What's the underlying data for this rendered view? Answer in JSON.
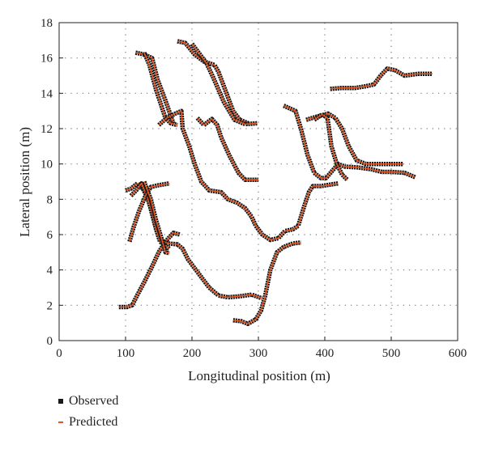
{
  "chart_data": {
    "type": "line",
    "title": "",
    "xlabel": "Longitudinal position (m)",
    "ylabel": "Lateral position (m)",
    "xlim": [
      0,
      600
    ],
    "ylim": [
      0,
      18
    ],
    "xticks": [
      0,
      100,
      200,
      300,
      400,
      500,
      600
    ],
    "yticks": [
      0,
      2,
      4,
      6,
      8,
      10,
      12,
      14,
      16,
      18
    ],
    "grid": "dotted",
    "legend_position": "bottom-left",
    "colors": {
      "observed": "#1a1a1a",
      "predicted": "#e8541e"
    },
    "legend": [
      {
        "key": "observed",
        "label": "Observed",
        "marker": "square"
      },
      {
        "key": "predicted",
        "label": "Predicted",
        "marker": "dash"
      }
    ],
    "trajectories": [
      [
        [
          115,
          16.3
        ],
        [
          128,
          16.2
        ],
        [
          140,
          16.0
        ],
        [
          148,
          14.8
        ],
        [
          160,
          13.6
        ],
        [
          172,
          12.3
        ]
      ],
      [
        [
          128,
          16.3
        ],
        [
          136,
          15.6
        ],
        [
          146,
          14.2
        ],
        [
          160,
          12.6
        ],
        [
          168,
          12.3
        ],
        [
          178,
          12.2
        ]
      ],
      [
        [
          178,
          16.95
        ],
        [
          190,
          16.85
        ],
        [
          204,
          16.2
        ],
        [
          218,
          15.8
        ],
        [
          234,
          15.6
        ],
        [
          240,
          15.2
        ],
        [
          252,
          14.0
        ],
        [
          262,
          13.0
        ],
        [
          272,
          12.5
        ],
        [
          285,
          12.3
        ]
      ],
      [
        [
          200,
          16.8
        ],
        [
          210,
          16.3
        ],
        [
          222,
          15.7
        ],
        [
          232,
          14.9
        ],
        [
          248,
          13.5
        ],
        [
          264,
          12.5
        ],
        [
          280,
          12.25
        ],
        [
          298,
          12.3
        ]
      ],
      [
        [
          150,
          12.2
        ],
        [
          162,
          12.6
        ],
        [
          175,
          12.85
        ],
        [
          184,
          13.0
        ],
        [
          186,
          12.0
        ],
        [
          196,
          11.0
        ],
        [
          204,
          10.0
        ],
        [
          214,
          9.0
        ],
        [
          226,
          8.5
        ],
        [
          244,
          8.4
        ],
        [
          254,
          8.0
        ],
        [
          268,
          7.8
        ],
        [
          280,
          7.5
        ],
        [
          290,
          7.0
        ],
        [
          296,
          6.5
        ],
        [
          306,
          6.0
        ],
        [
          318,
          5.7
        ],
        [
          330,
          5.8
        ],
        [
          340,
          6.2
        ],
        [
          352,
          6.3
        ],
        [
          360,
          6.5
        ],
        [
          368,
          7.5
        ],
        [
          376,
          8.4
        ],
        [
          382,
          8.75
        ],
        [
          394,
          8.75
        ],
        [
          420,
          8.9
        ]
      ],
      [
        [
          208,
          12.6
        ],
        [
          218,
          12.2
        ],
        [
          230,
          12.55
        ],
        [
          238,
          12.2
        ],
        [
          244,
          11.5
        ],
        [
          256,
          10.5
        ],
        [
          270,
          9.5
        ],
        [
          280,
          9.1
        ],
        [
          300,
          9.1
        ]
      ],
      [
        [
          338,
          13.3
        ],
        [
          350,
          13.1
        ],
        [
          356,
          13.0
        ],
        [
          364,
          12.0
        ],
        [
          374,
          10.5
        ],
        [
          384,
          9.5
        ],
        [
          394,
          9.2
        ],
        [
          402,
          9.2
        ],
        [
          420,
          10.0
        ],
        [
          430,
          9.85
        ],
        [
          450,
          9.8
        ],
        [
          470,
          9.7
        ],
        [
          486,
          9.55
        ],
        [
          500,
          9.55
        ],
        [
          520,
          9.5
        ],
        [
          536,
          9.25
        ]
      ],
      [
        [
          372,
          12.5
        ],
        [
          390,
          12.7
        ],
        [
          405,
          12.85
        ],
        [
          416,
          12.6
        ],
        [
          426,
          12.0
        ],
        [
          436,
          11.0
        ],
        [
          448,
          10.2
        ],
        [
          462,
          10.0
        ],
        [
          490,
          10.0
        ],
        [
          518,
          10.0
        ]
      ],
      [
        [
          384,
          12.5
        ],
        [
          396,
          12.8
        ],
        [
          404,
          12.6
        ],
        [
          410,
          11.0
        ],
        [
          418,
          10.0
        ],
        [
          426,
          9.4
        ],
        [
          434,
          9.1
        ]
      ],
      [
        [
          408,
          14.25
        ],
        [
          425,
          14.3
        ],
        [
          445,
          14.3
        ],
        [
          462,
          14.4
        ],
        [
          474,
          14.5
        ],
        [
          484,
          15.0
        ],
        [
          494,
          15.4
        ],
        [
          506,
          15.3
        ],
        [
          520,
          15.0
        ],
        [
          540,
          15.1
        ],
        [
          562,
          15.1
        ]
      ],
      [
        [
          90,
          1.9
        ],
        [
          102,
          1.9
        ],
        [
          110,
          2.0
        ],
        [
          118,
          2.6
        ],
        [
          128,
          3.3
        ],
        [
          140,
          4.2
        ],
        [
          150,
          5.0
        ],
        [
          160,
          5.6
        ],
        [
          172,
          6.1
        ],
        [
          182,
          6.0
        ]
      ],
      [
        [
          100,
          8.5
        ],
        [
          108,
          8.6
        ],
        [
          118,
          8.9
        ],
        [
          126,
          8.6
        ],
        [
          134,
          8.0
        ],
        [
          144,
          6.6
        ],
        [
          152,
          5.7
        ],
        [
          164,
          5.5
        ],
        [
          178,
          5.45
        ],
        [
          186,
          5.2
        ],
        [
          194,
          4.6
        ],
        [
          206,
          4.0
        ],
        [
          216,
          3.5
        ],
        [
          226,
          3.0
        ],
        [
          240,
          2.55
        ],
        [
          254,
          2.45
        ],
        [
          270,
          2.5
        ],
        [
          290,
          2.6
        ],
        [
          305,
          2.4
        ]
      ],
      [
        [
          108,
          8.2
        ],
        [
          116,
          8.5
        ],
        [
          124,
          8.9
        ],
        [
          132,
          8.2
        ],
        [
          138,
          7.5
        ],
        [
          146,
          6.3
        ],
        [
          152,
          5.6
        ],
        [
          166,
          5.2
        ]
      ],
      [
        [
          106,
          5.6
        ],
        [
          112,
          6.4
        ],
        [
          120,
          7.3
        ],
        [
          130,
          8.2
        ],
        [
          138,
          8.7
        ],
        [
          150,
          8.8
        ],
        [
          166,
          8.9
        ]
      ],
      [
        [
          128,
          9.0
        ],
        [
          138,
          8.0
        ],
        [
          146,
          6.8
        ],
        [
          154,
          5.8
        ],
        [
          160,
          5.0
        ],
        [
          166,
          4.95
        ]
      ],
      [
        [
          262,
          1.15
        ],
        [
          274,
          1.1
        ],
        [
          284,
          0.95
        ],
        [
          296,
          1.2
        ],
        [
          304,
          1.7
        ],
        [
          310,
          2.5
        ],
        [
          318,
          4.0
        ],
        [
          328,
          5.0
        ],
        [
          338,
          5.3
        ],
        [
          352,
          5.5
        ],
        [
          364,
          5.55
        ]
      ]
    ]
  }
}
